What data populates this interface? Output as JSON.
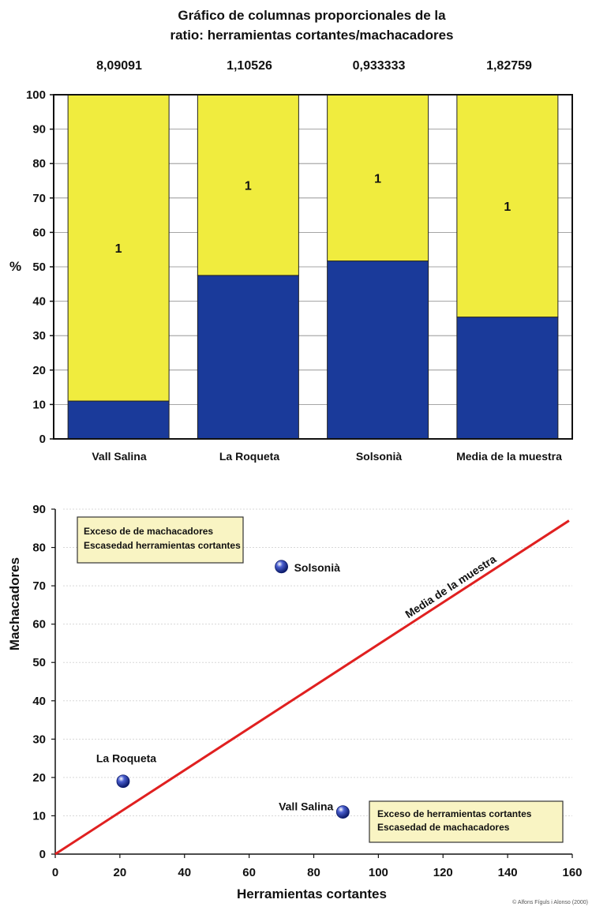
{
  "chart_data": [
    {
      "type": "bar",
      "stacked": "percent",
      "title_lines": [
        "Gráfico de columnas proporcionales de la",
        "ratio: herramientas cortantes/machacadores"
      ],
      "ratios": [
        "8,09091",
        "1,10526",
        "0,933333",
        "1,82759"
      ],
      "categories": [
        "Vall Salina",
        "La Roqueta",
        "Solsonià",
        "Media de la muestra"
      ],
      "ylabel": "%",
      "ylim": [
        0,
        100
      ],
      "yticks": [
        0,
        10,
        20,
        30,
        40,
        50,
        60,
        70,
        80,
        90,
        100
      ],
      "grid": true,
      "series": [
        {
          "values": [
            11,
            47.5,
            51.7,
            35.4
          ],
          "color": "#1a3a9a"
        },
        {
          "values": [
            89,
            52.5,
            48.3,
            64.6
          ],
          "color": "#f0ec3e"
        }
      ],
      "bar_labels": [
        "1",
        "1",
        "1",
        "1"
      ]
    },
    {
      "type": "scatter",
      "xlabel": "Herramientas cortantes",
      "ylabel": "Machacadores",
      "xlim": [
        0,
        160
      ],
      "ylim": [
        0,
        90
      ],
      "xticks": [
        0,
        20,
        40,
        60,
        80,
        100,
        120,
        140,
        160
      ],
      "yticks": [
        0,
        10,
        20,
        30,
        40,
        50,
        60,
        70,
        80,
        90
      ],
      "points": [
        {
          "label": "Solsonià",
          "x": 70,
          "y": 75
        },
        {
          "label": "La Roqueta",
          "x": 21,
          "y": 19
        },
        {
          "label": "Vall Salina",
          "x": 89,
          "y": 11
        }
      ],
      "line": {
        "label": "Media de la muestra",
        "x": [
          0,
          159
        ],
        "y": [
          0,
          87
        ],
        "color": "#e02020"
      },
      "annotations": [
        {
          "lines": [
            "Exceso de de machacadores",
            "Escasedad herramientas cortantes"
          ]
        },
        {
          "lines": [
            "Exceso de herramientas cortantes",
            "Escasedad de machacadores"
          ]
        }
      ]
    }
  ],
  "credit": "© Alfons Fíguls i Alonso (2000)"
}
